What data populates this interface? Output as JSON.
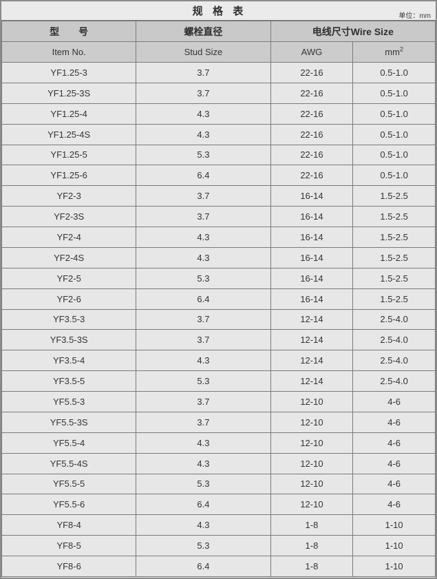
{
  "title": "规  格  表",
  "unit_note": "单位：mm",
  "header": {
    "col_item_cn": "型　　号",
    "col_stud_cn": "螺栓直径",
    "col_wire_cn": "电线尺寸Wire Size",
    "col_item_en": "Item No.",
    "col_stud_en": "Stud Size",
    "col_awg": "AWG",
    "col_mm2_base": "mm",
    "col_mm2_sup": "2"
  },
  "columns": [
    "item",
    "stud",
    "awg",
    "mm2"
  ],
  "rows": [
    {
      "item": "YF1.25-3",
      "stud": "3.7",
      "awg": "22-16",
      "mm2": "0.5-1.0"
    },
    {
      "item": "YF1.25-3S",
      "stud": "3.7",
      "awg": "22-16",
      "mm2": "0.5-1.0"
    },
    {
      "item": "YF1.25-4",
      "stud": "4.3",
      "awg": "22-16",
      "mm2": "0.5-1.0"
    },
    {
      "item": "YF1.25-4S",
      "stud": "4.3",
      "awg": "22-16",
      "mm2": "0.5-1.0"
    },
    {
      "item": "YF1.25-5",
      "stud": "5.3",
      "awg": "22-16",
      "mm2": "0.5-1.0"
    },
    {
      "item": "YF1.25-6",
      "stud": "6.4",
      "awg": "22-16",
      "mm2": "0.5-1.0"
    },
    {
      "item": "YF2-3",
      "stud": "3.7",
      "awg": "16-14",
      "mm2": "1.5-2.5"
    },
    {
      "item": "YF2-3S",
      "stud": "3.7",
      "awg": "16-14",
      "mm2": "1.5-2.5"
    },
    {
      "item": "YF2-4",
      "stud": "4.3",
      "awg": "16-14",
      "mm2": "1.5-2.5"
    },
    {
      "item": "YF2-4S",
      "stud": "4.3",
      "awg": "16-14",
      "mm2": "1.5-2.5"
    },
    {
      "item": "YF2-5",
      "stud": "5.3",
      "awg": "16-14",
      "mm2": "1.5-2.5"
    },
    {
      "item": "YF2-6",
      "stud": "6.4",
      "awg": "16-14",
      "mm2": "1.5-2.5"
    },
    {
      "item": "YF3.5-3",
      "stud": "3.7",
      "awg": "12-14",
      "mm2": "2.5-4.0"
    },
    {
      "item": "YF3.5-3S",
      "stud": "3.7",
      "awg": "12-14",
      "mm2": "2.5-4.0"
    },
    {
      "item": "YF3.5-4",
      "stud": "4.3",
      "awg": "12-14",
      "mm2": "2.5-4.0"
    },
    {
      "item": "YF3.5-5",
      "stud": "5.3",
      "awg": "12-14",
      "mm2": "2.5-4.0"
    },
    {
      "item": "YF5.5-3",
      "stud": "3.7",
      "awg": "12-10",
      "mm2": "4-6"
    },
    {
      "item": "YF5.5-3S",
      "stud": "3.7",
      "awg": "12-10",
      "mm2": "4-6"
    },
    {
      "item": "YF5.5-4",
      "stud": "4.3",
      "awg": "12-10",
      "mm2": "4-6"
    },
    {
      "item": "YF5.5-4S",
      "stud": "4.3",
      "awg": "12-10",
      "mm2": "4-6"
    },
    {
      "item": "YF5.5-5",
      "stud": "5.3",
      "awg": "12-10",
      "mm2": "4-6"
    },
    {
      "item": "YF5.5-6",
      "stud": "6.4",
      "awg": "12-10",
      "mm2": "4-6"
    },
    {
      "item": "YF8-4",
      "stud": "4.3",
      "awg": "1-8",
      "mm2": "1-10"
    },
    {
      "item": "YF8-5",
      "stud": "5.3",
      "awg": "1-8",
      "mm2": "1-10"
    },
    {
      "item": "YF8-6",
      "stud": "6.4",
      "awg": "1-8",
      "mm2": "1-10"
    }
  ],
  "colors": {
    "header_bg": "#c9c9c9",
    "subheader_bg": "#cccccc",
    "row_bg": "#e7e7e7",
    "title_bg": "#ebebeb",
    "border": "#7a7a7a",
    "text": "#333333"
  }
}
